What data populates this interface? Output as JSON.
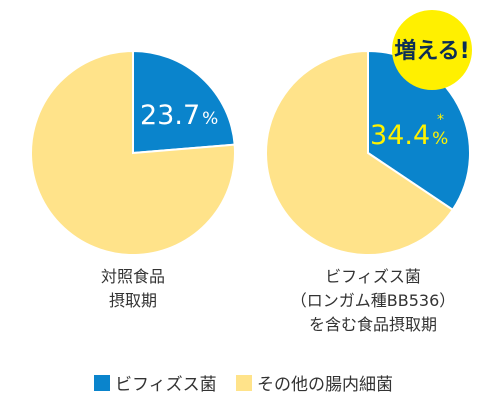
{
  "chart_data": [
    {
      "type": "pie",
      "labels": [
        "ビフィズス菌",
        "その他の腸内細菌"
      ],
      "values": [
        23.7,
        76.3
      ],
      "data_label": {
        "value": "23.7",
        "unit": "%"
      },
      "caption": "対照食品\n摂取期"
    },
    {
      "type": "pie",
      "labels": [
        "ビフィズス菌",
        "その他の腸内細菌"
      ],
      "values": [
        34.4,
        65.6
      ],
      "data_label": {
        "value": "34.4",
        "unit": "%",
        "mark": "*"
      },
      "caption": "ビフィズス菌\n（ロンガム種BB536）\nを含む食品摂取期",
      "badge": "増える!"
    }
  ],
  "legend": [
    {
      "label": "ビフィズス菌",
      "color": "#0a84cc"
    },
    {
      "label": "その他の腸内細菌",
      "color": "#ffe38a"
    }
  ],
  "colors": {
    "bifido": "#0a84cc",
    "other": "#ffe38a",
    "label_white": "#ffffff",
    "label_yellow": "#fff200",
    "badge_bg": "#fff000",
    "badge_text": "#0b2e55"
  }
}
